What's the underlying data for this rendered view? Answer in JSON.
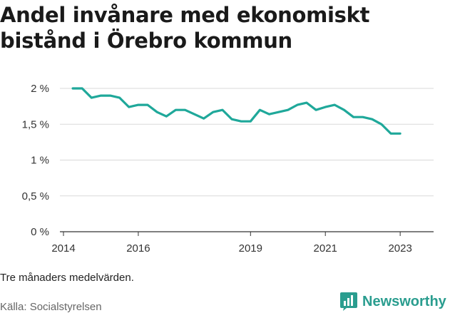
{
  "title": "Andel invånare med ekonomiskt bistånd i Örebro kommun",
  "note": "Tre månaders medelvärden.",
  "source": "Källa: Socialstyrelsen",
  "brand": {
    "name": "Newsworthy",
    "icon": "bar-chart-icon",
    "color": "#2a9d8f"
  },
  "colors": {
    "line": "#1fa89a",
    "grid": "#d9d9d9",
    "axis": "#333333"
  },
  "chart_data": {
    "type": "line",
    "title": "Andel invånare med ekonomiskt bistånd i Örebro kommun",
    "xlabel": "",
    "ylabel": "",
    "x_tick_labels": [
      "2014",
      "2016",
      "2019",
      "2021",
      "2023"
    ],
    "y_tick_labels": [
      "0 %",
      "0,5 %",
      "1 %",
      "1,5 %",
      "2 %"
    ],
    "y_ticks": [
      0,
      0.5,
      1.0,
      1.5,
      2.0
    ],
    "ylim": [
      0,
      2.0
    ],
    "xlim": [
      "2014-01",
      "2023-06"
    ],
    "grid": true,
    "series": [
      {
        "x": [
          "2014-04",
          "2014-07",
          "2014-10",
          "2015-01",
          "2015-04",
          "2015-07",
          "2015-10",
          "2016-01",
          "2016-04",
          "2016-07",
          "2016-10",
          "2017-01",
          "2017-04",
          "2017-07",
          "2017-10",
          "2018-01",
          "2018-04",
          "2018-07",
          "2018-10",
          "2019-01",
          "2019-04",
          "2019-07",
          "2019-10",
          "2020-01",
          "2020-04",
          "2020-07",
          "2020-10",
          "2021-01",
          "2021-04",
          "2021-07",
          "2021-10",
          "2022-01",
          "2022-04",
          "2022-07",
          "2022-10",
          "2023-01"
        ],
        "values": [
          2.0,
          2.0,
          1.87,
          1.9,
          1.9,
          1.87,
          1.74,
          1.77,
          1.77,
          1.67,
          1.61,
          1.7,
          1.7,
          1.64,
          1.58,
          1.67,
          1.7,
          1.57,
          1.54,
          1.54,
          1.7,
          1.64,
          1.67,
          1.7,
          1.77,
          1.8,
          1.7,
          1.74,
          1.77,
          1.7,
          1.6,
          1.6,
          1.57,
          1.5,
          1.37,
          1.37
        ]
      }
    ]
  }
}
